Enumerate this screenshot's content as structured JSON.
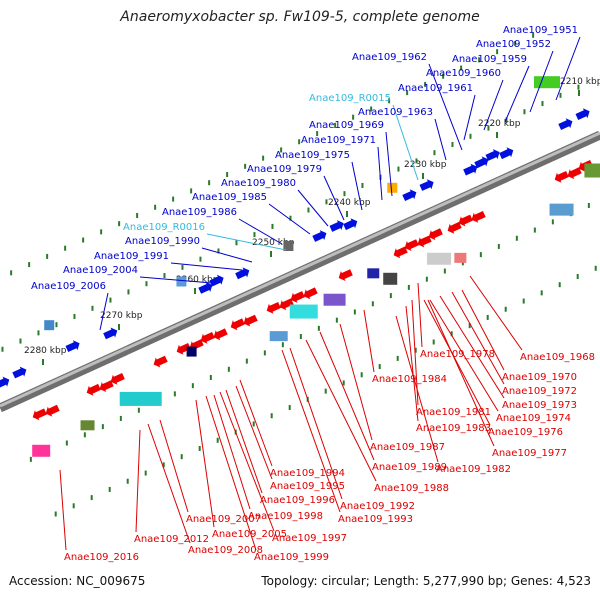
{
  "title": "Anaeromyxobacter sp. Fw109-5, complete genome",
  "accession": "Accession: NC_009675",
  "summary": "Topology: circular; Length: 5,277,990 bp; Genes: 4,523",
  "colors": {
    "forward_label": "#0000cc",
    "rna_label": "#33bbdd",
    "reverse_label": "#dd0000",
    "backbone": "#888888",
    "tick": "#2a7a2a"
  },
  "kbp_ticks": [
    "2210 kbp",
    "2220 kbp",
    "2230 kbp",
    "2240 kbp",
    "2250 kbp",
    "2260 kbp",
    "2270 kbp",
    "2280 kbp"
  ],
  "forward_labels": [
    "Anae109_1951",
    "Anae109_1952",
    "Anae109_1959",
    "Anae109_1960",
    "Anae109_1961",
    "Anae109_1962",
    "Anae109_R0015",
    "Anae109_1963",
    "Anae109_1969",
    "Anae109_1971",
    "Anae109_1975",
    "Anae109_1979",
    "Anae109_1980",
    "Anae109_1985",
    "Anae109_1986",
    "Anae109_R0016",
    "Anae109_1990",
    "Anae109_1991",
    "Anae109_2004",
    "Anae109_2006"
  ],
  "reverse_labels": [
    "Anae109_1968",
    "Anae109_1978",
    "Anae109_1970",
    "Anae109_1984",
    "Anae109_1972",
    "Anae109_1973",
    "Anae109_1981",
    "Anae109_1974",
    "Anae109_1983",
    "Anae109_1976",
    "Anae109_1987",
    "Anae109_1977",
    "Anae109_1982",
    "Anae109_1989",
    "Anae109_1994",
    "Anae109_1988",
    "Anae109_1995",
    "Anae109_1996",
    "Anae109_1992",
    "Anae109_1998",
    "Anae109_1993",
    "Anae109_2007",
    "Anae109_2005",
    "Anae109_1997",
    "Anae109_2012",
    "Anae109_2008",
    "Anae109_1999",
    "Anae109_2016"
  ]
}
